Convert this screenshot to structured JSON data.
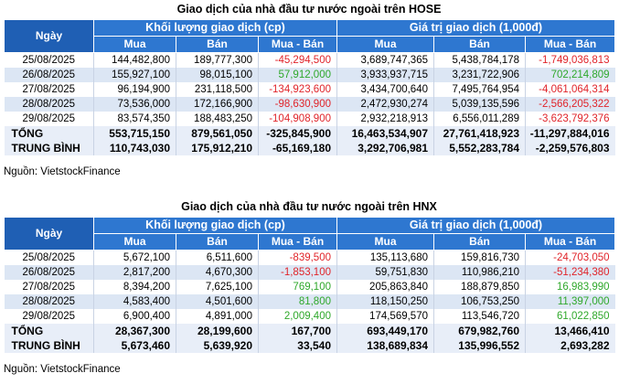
{
  "hose": {
    "title": "Giao dịch của nhà đầu tư nước ngoài trên HOSE",
    "col_day": "Ngày",
    "group_volume": "Khối lượng giao dịch (cp)",
    "group_value": "Giá trị giao dịch (1,000đ)",
    "sub_buy": "Mua",
    "sub_sell": "Bán",
    "sub_net": "Mua - Bán",
    "rows": [
      {
        "date": "25/08/2025",
        "vbuy": "144,482,800",
        "vsell": "189,777,300",
        "vnet": "-45,294,500",
        "gbuy": "3,689,747,365",
        "gsell": "5,438,784,178",
        "gnet": "-1,749,036,813"
      },
      {
        "date": "26/08/2025",
        "vbuy": "155,927,100",
        "vsell": "98,015,100",
        "vnet": "57,912,000",
        "gbuy": "3,933,937,715",
        "gsell": "3,231,722,906",
        "gnet": "702,214,809"
      },
      {
        "date": "27/08/2025",
        "vbuy": "96,194,900",
        "vsell": "231,118,500",
        "vnet": "-134,923,600",
        "gbuy": "3,434,700,640",
        "gsell": "7,495,764,954",
        "gnet": "-4,061,064,314"
      },
      {
        "date": "28/08/2025",
        "vbuy": "73,536,000",
        "vsell": "172,166,900",
        "vnet": "-98,630,900",
        "gbuy": "2,472,930,274",
        "gsell": "5,039,135,596",
        "gnet": "-2,566,205,322"
      },
      {
        "date": "29/08/2025",
        "vbuy": "83,574,350",
        "vsell": "188,483,250",
        "vnet": "-104,908,900",
        "gbuy": "2,932,218,913",
        "gsell": "6,556,011,289",
        "gnet": "-3,623,792,376"
      }
    ],
    "total": {
      "label": "TỔNG",
      "vbuy": "553,715,150",
      "vsell": "879,561,050",
      "vnet": "-325,845,900",
      "gbuy": "16,463,534,907",
      "gsell": "27,761,418,923",
      "gnet": "-11,297,884,016"
    },
    "avg": {
      "label": "TRUNG BÌNH",
      "vbuy": "110,743,030",
      "vsell": "175,912,210",
      "vnet": "-65,169,180",
      "gbuy": "3,292,706,981",
      "gsell": "5,552,283,784",
      "gnet": "-2,259,576,803"
    },
    "source": "Nguồn: VietstockFinance"
  },
  "hnx": {
    "title": "Giao dịch của nhà đầu tư nước ngoài trên HNX",
    "col_day": "Ngày",
    "group_volume": "Khối lượng giao dịch (cp)",
    "group_value": "Giá trị giao dịch (1,000đ)",
    "sub_buy": "Mua",
    "sub_sell": "Bán",
    "sub_net": "Mua - Bán",
    "rows": [
      {
        "date": "25/08/2025",
        "vbuy": "5,672,100",
        "vsell": "6,511,600",
        "vnet": "-839,500",
        "gbuy": "135,113,680",
        "gsell": "159,816,730",
        "gnet": "-24,703,050"
      },
      {
        "date": "26/08/2025",
        "vbuy": "2,817,200",
        "vsell": "4,670,300",
        "vnet": "-1,853,100",
        "gbuy": "59,751,830",
        "gsell": "110,986,210",
        "gnet": "-51,234,380"
      },
      {
        "date": "27/08/2025",
        "vbuy": "8,394,200",
        "vsell": "7,625,100",
        "vnet": "769,100",
        "gbuy": "205,863,840",
        "gsell": "188,879,850",
        "gnet": "16,983,990"
      },
      {
        "date": "28/08/2025",
        "vbuy": "4,583,400",
        "vsell": "4,501,600",
        "vnet": "81,800",
        "gbuy": "118,150,250",
        "gsell": "106,753,250",
        "gnet": "11,397,000"
      },
      {
        "date": "29/08/2025",
        "vbuy": "6,900,400",
        "vsell": "4,891,000",
        "vnet": "2,009,400",
        "gbuy": "174,569,570",
        "gsell": "113,546,720",
        "gnet": "61,022,850"
      }
    ],
    "total": {
      "label": "TỔNG",
      "vbuy": "28,367,300",
      "vsell": "28,199,600",
      "vnet": "167,700",
      "gbuy": "693,449,170",
      "gsell": "679,982,760",
      "gnet": "13,466,410"
    },
    "avg": {
      "label": "TRUNG BÌNH",
      "vbuy": "5,673,460",
      "vsell": "5,639,920",
      "vnet": "33,540",
      "gbuy": "138,689,834",
      "gsell": "135,996,552",
      "gnet": "2,693,282"
    },
    "source": "Nguồn: VietstockFinance"
  }
}
